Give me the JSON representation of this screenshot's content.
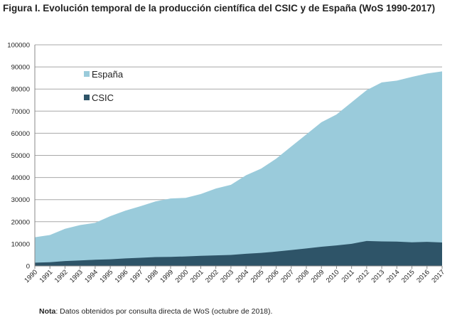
{
  "title": "Figura I. Evolución temporal de la producción científica del CSIC y de España (WoS 1990-2017)",
  "note": {
    "label": "Nota",
    "text": ": Datos obtenidos por consulta directa de WoS (octubre de 2018)."
  },
  "chart_data": {
    "type": "area",
    "title": "",
    "xlabel": "",
    "ylabel": "",
    "ylim": [
      0,
      100000
    ],
    "yticks": [
      0,
      10000,
      20000,
      30000,
      40000,
      50000,
      60000,
      70000,
      80000,
      90000,
      100000
    ],
    "grid": true,
    "legend": "top-left",
    "categories": [
      "1990",
      "1991",
      "1992",
      "1993",
      "1994",
      "1995",
      "1996",
      "1997",
      "1998",
      "1999",
      "2000",
      "2001",
      "2002",
      "2003",
      "2004",
      "2005",
      "2006",
      "2007",
      "2008",
      "2009",
      "2010",
      "2011",
      "2012",
      "2013",
      "2014",
      "2015",
      "2016",
      "2017"
    ],
    "series": [
      {
        "name": "España",
        "color": "#9acbdb",
        "values": [
          13000,
          14000,
          16800,
          18500,
          19500,
          22500,
          25000,
          27000,
          29200,
          30500,
          30800,
          32500,
          35000,
          36700,
          41000,
          44000,
          48500,
          54000,
          59500,
          65000,
          68500,
          74000,
          79500,
          83000,
          83800,
          85500,
          87000,
          88000
        ]
      },
      {
        "name": "CSIC",
        "color": "#2e5468",
        "values": [
          1500,
          1700,
          2200,
          2500,
          2800,
          3000,
          3400,
          3700,
          4000,
          4100,
          4300,
          4600,
          4800,
          5000,
          5500,
          5900,
          6500,
          7200,
          7900,
          8700,
          9300,
          10000,
          11300,
          11100,
          11000,
          10700,
          10900,
          10600
        ]
      }
    ]
  }
}
